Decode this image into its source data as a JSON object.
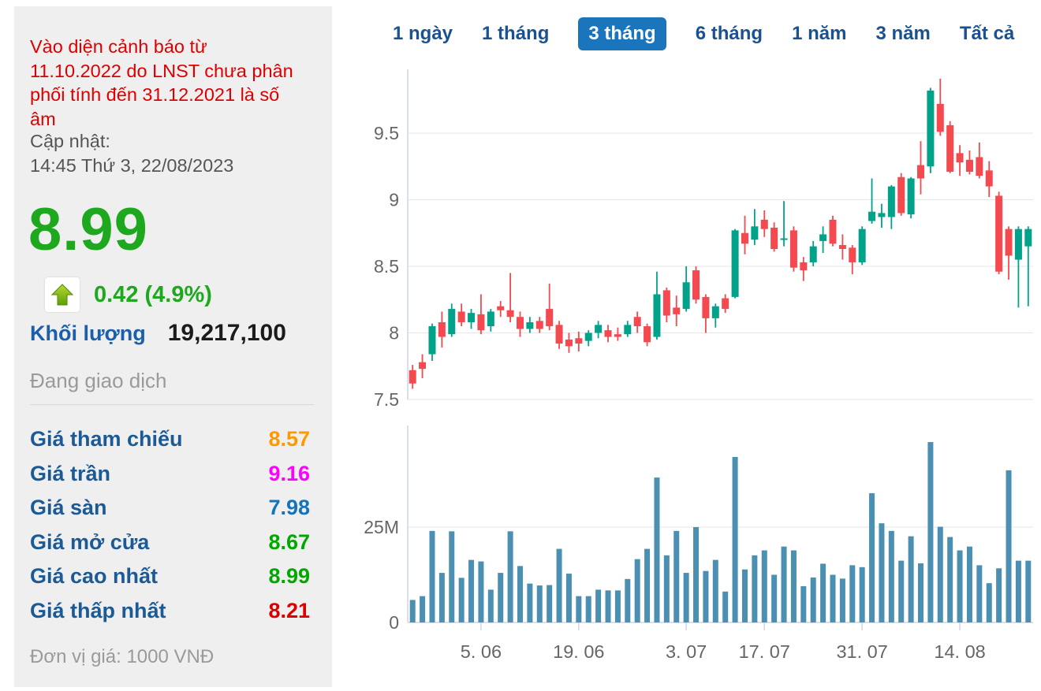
{
  "sidebar": {
    "warning": "Vào diện cảnh báo từ 11.10.2022 do LNST chưa phân phối tính đến 31.12.2021 là số âm",
    "warning_color": "#de0000",
    "update_label": "Cập nhật:",
    "update_time": "14:45 Thứ 3, 22/08/2023",
    "price": "8.99",
    "price_color": "#1da81d",
    "change": "0.42 (4.9%)",
    "change_direction": "up",
    "volume_label": "Khối lượng",
    "volume_value": "19,217,100",
    "status": "Đang giao dịch",
    "price_rows": [
      {
        "label": "Giá tham chiếu",
        "value": "8.57",
        "color": "#ff9900"
      },
      {
        "label": "Giá trần",
        "value": "9.16",
        "color": "#ff00ff"
      },
      {
        "label": "Giá sàn",
        "value": "7.98",
        "color": "#1673b8"
      },
      {
        "label": "Giá mở cửa",
        "value": "8.67",
        "color": "#00a800"
      },
      {
        "label": "Giá cao nhất",
        "value": "8.99",
        "color": "#00a800"
      },
      {
        "label": "Giá thấp nhất",
        "value": "8.21",
        "color": "#dd0000"
      }
    ],
    "unit_note": "Đơn vị giá: 1000 VNĐ"
  },
  "tabs": {
    "items": [
      {
        "label": "1 ngày",
        "active": false
      },
      {
        "label": "1 tháng",
        "active": false
      },
      {
        "label": "3 tháng",
        "active": true
      },
      {
        "label": "6 tháng",
        "active": false
      },
      {
        "label": "1 năm",
        "active": false
      },
      {
        "label": "3 năm",
        "active": false
      },
      {
        "label": "Tất cả",
        "active": false
      }
    ],
    "active_bg": "#1b75bc",
    "icon": "area-chart-icon",
    "icon_colors": {
      "top": "#3d3db8",
      "bottom": "#1ec9d6"
    }
  },
  "chart_data": [
    {
      "type": "candlestick",
      "title": "",
      "up_color": "#00a28a",
      "down_color": "#f4494f",
      "grid_color": "#e6e6e6",
      "axis_color": "#ccd6eb",
      "label_color": "#666666",
      "y_ticks": [
        9.5,
        9,
        8.5,
        8,
        7.5
      ],
      "ylim": [
        7.45,
        9.98
      ],
      "x_tick_labels": [
        "5. 06",
        "19. 06",
        "3. 07",
        "17. 07",
        "31. 07",
        "14. 08"
      ],
      "x_tick_indices": [
        7,
        17,
        28,
        36,
        46,
        56
      ],
      "candles": [
        [
          7.72,
          7.76,
          7.58,
          7.62
        ],
        [
          7.78,
          7.84,
          7.66,
          7.73
        ],
        [
          7.84,
          8.07,
          7.79,
          8.05
        ],
        [
          8.08,
          8.16,
          7.89,
          7.97
        ],
        [
          7.99,
          8.22,
          7.97,
          8.18
        ],
        [
          8.16,
          8.22,
          8.05,
          8.08
        ],
        [
          8.08,
          8.18,
          8.03,
          8.15
        ],
        [
          8.14,
          8.29,
          7.99,
          8.02
        ],
        [
          8.05,
          8.18,
          8.01,
          8.16
        ],
        [
          8.2,
          8.24,
          8.12,
          8.17
        ],
        [
          8.17,
          8.45,
          8.08,
          8.12
        ],
        [
          8.12,
          8.16,
          7.97,
          8.03
        ],
        [
          8.03,
          8.12,
          8.0,
          8.08
        ],
        [
          8.09,
          8.12,
          8.0,
          8.03
        ],
        [
          8.18,
          8.37,
          8.02,
          8.05
        ],
        [
          8.06,
          8.09,
          7.88,
          7.92
        ],
        [
          7.95,
          8.0,
          7.85,
          7.9
        ],
        [
          7.96,
          8.01,
          7.86,
          7.92
        ],
        [
          7.94,
          8.02,
          7.9,
          8.0
        ],
        [
          8.0,
          8.09,
          7.96,
          8.06
        ],
        [
          8.02,
          8.06,
          7.93,
          7.97
        ],
        [
          7.99,
          8.04,
          7.94,
          7.97
        ],
        [
          7.99,
          8.09,
          7.97,
          8.06
        ],
        [
          8.12,
          8.16,
          8.0,
          8.05
        ],
        [
          8.05,
          8.07,
          7.9,
          7.93
        ],
        [
          7.97,
          8.46,
          7.95,
          8.29
        ],
        [
          8.32,
          8.34,
          8.08,
          8.13
        ],
        [
          8.19,
          8.28,
          8.05,
          8.14
        ],
        [
          8.18,
          8.5,
          8.16,
          8.38
        ],
        [
          8.47,
          8.5,
          8.22,
          8.25
        ],
        [
          8.27,
          8.29,
          8.0,
          8.11
        ],
        [
          8.11,
          8.22,
          8.04,
          8.2
        ],
        [
          8.26,
          8.29,
          8.15,
          8.18
        ],
        [
          8.27,
          8.78,
          8.26,
          8.77
        ],
        [
          8.75,
          8.88,
          8.59,
          8.67
        ],
        [
          8.7,
          8.93,
          8.66,
          8.8
        ],
        [
          8.85,
          8.92,
          8.72,
          8.78
        ],
        [
          8.79,
          8.83,
          8.61,
          8.63
        ],
        [
          8.7,
          8.99,
          8.65,
          8.71
        ],
        [
          8.77,
          8.8,
          8.46,
          8.49
        ],
        [
          8.53,
          8.57,
          8.39,
          8.47
        ],
        [
          8.53,
          8.69,
          8.5,
          8.65
        ],
        [
          8.69,
          8.8,
          8.6,
          8.74
        ],
        [
          8.85,
          8.88,
          8.65,
          8.67
        ],
        [
          8.66,
          8.74,
          8.55,
          8.63
        ],
        [
          8.64,
          8.66,
          8.44,
          8.53
        ],
        [
          8.53,
          8.8,
          8.51,
          8.78
        ],
        [
          8.84,
          9.16,
          8.82,
          8.91
        ],
        [
          8.87,
          8.97,
          8.79,
          8.9
        ],
        [
          8.87,
          9.11,
          8.78,
          9.1
        ],
        [
          9.17,
          9.2,
          8.88,
          8.9
        ],
        [
          8.89,
          9.17,
          8.86,
          9.16
        ],
        [
          9.26,
          9.44,
          9.04,
          9.16
        ],
        [
          9.25,
          9.84,
          9.2,
          9.82
        ],
        [
          9.72,
          9.91,
          9.48,
          9.51
        ],
        [
          9.56,
          9.59,
          9.2,
          9.21
        ],
        [
          9.35,
          9.41,
          9.18,
          9.28
        ],
        [
          9.3,
          9.37,
          9.19,
          9.21
        ],
        [
          9.32,
          9.43,
          9.16,
          9.18
        ],
        [
          9.22,
          9.29,
          9.02,
          9.1
        ],
        [
          9.03,
          9.06,
          8.44,
          8.46
        ],
        [
          8.78,
          8.8,
          8.4,
          8.58
        ],
        [
          8.55,
          8.8,
          8.19,
          8.78
        ],
        [
          8.65,
          8.8,
          8.2,
          8.78
        ]
      ]
    },
    {
      "type": "bar",
      "name": "volume",
      "unit": "M",
      "color": "#4b90b2",
      "y_tick_labels": [
        "25M",
        "0"
      ],
      "y_tick_values": [
        25,
        0
      ],
      "ylim": [
        0,
        52
      ],
      "values": [
        5.9,
        6.9,
        24,
        13,
        23.9,
        11.7,
        16.4,
        16,
        8.6,
        13,
        23.9,
        14.8,
        10.2,
        9.7,
        9.8,
        19.3,
        12.8,
        6.9,
        6.9,
        8.6,
        8.4,
        8.4,
        11.4,
        16.6,
        19.3,
        38,
        17.6,
        24,
        13,
        25,
        13.5,
        16.4,
        8.1,
        43.4,
        13.9,
        17.6,
        18.9,
        12.5,
        19.9,
        18.9,
        9.5,
        11.8,
        15.4,
        12.5,
        11.5,
        15,
        14.5,
        33.9,
        26,
        24,
        16.2,
        22.6,
        15.5,
        47.3,
        25.1,
        22.4,
        18.9,
        19.9,
        15,
        10.3,
        14.2,
        39.9,
        16.2,
        16.2
      ]
    }
  ]
}
